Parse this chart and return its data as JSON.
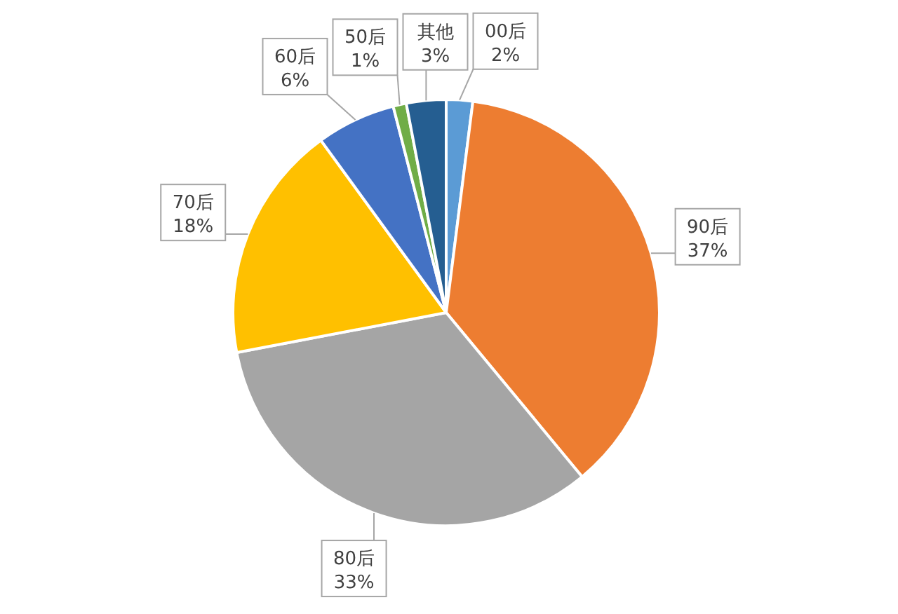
{
  "chart_data": {
    "type": "pie",
    "categories": [
      "00后",
      "90后",
      "80后",
      "70后",
      "60后",
      "50后",
      "其他"
    ],
    "values": [
      2,
      37,
      33,
      18,
      6,
      1,
      3
    ],
    "value_labels": [
      "2%",
      "37%",
      "33%",
      "18%",
      "6%",
      "1%",
      "3%"
    ],
    "colors": [
      "#5b9bd5",
      "#ed7d31",
      "#a5a5a5",
      "#ffc000",
      "#4472c4",
      "#70ad47",
      "#255e91"
    ]
  }
}
